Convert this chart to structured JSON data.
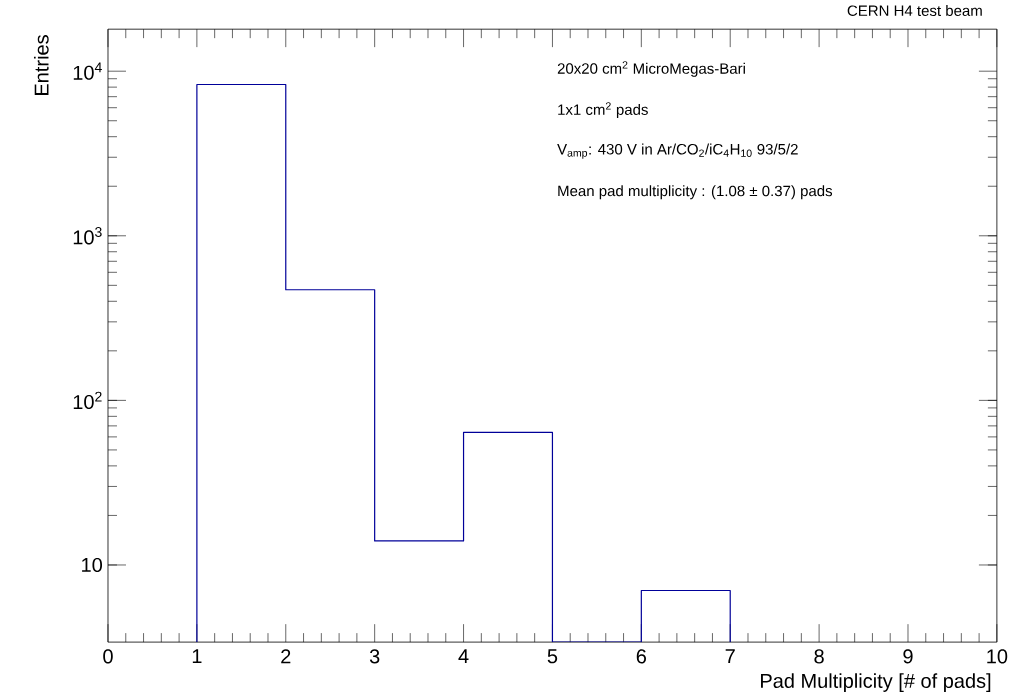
{
  "chart_data": {
    "type": "histogram",
    "title": "CERN H4 test beam",
    "xlabel": "Pad Multiplicity [# of pads]",
    "ylabel": "Entries",
    "bins": [
      1,
      2,
      3,
      4,
      5,
      6,
      7
    ],
    "values": [
      8300,
      470,
      14,
      64,
      null,
      7
    ],
    "color": "#000099",
    "log": true,
    "xlim": [
      0,
      10
    ],
    "xticks": [
      0,
      1,
      2,
      3,
      4,
      5,
      6,
      7,
      8,
      9,
      10
    ],
    "ylim": [
      3.4,
      18000
    ],
    "yticks": [
      {
        "value": 10,
        "label": "10"
      },
      {
        "value": 100,
        "label": "10$^{2}$"
      },
      {
        "value": 1000,
        "label": "10$^{3}$"
      },
      {
        "value": 10000,
        "label": "10$^{4}$"
      }
    ],
    "annotations": [
      "20x20 cm$^{2}$ MicroMegas-Bari",
      "1x1 cm$^{2}$ pads",
      "V$_{amp}$: 430 V  in Ar/CO$_{2}$/iC$_{4}$H$_{10}$ 93/5/2",
      "Mean pad multiplicity : (1.08 ± 0.37) pads"
    ]
  }
}
